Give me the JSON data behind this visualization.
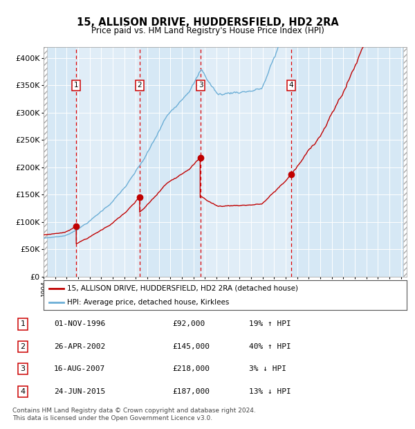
{
  "title": "15, ALLISON DRIVE, HUDDERSFIELD, HD2 2RA",
  "subtitle": "Price paid vs. HM Land Registry's House Price Index (HPI)",
  "xlim": [
    1994.0,
    2025.5
  ],
  "ylim": [
    0,
    420000
  ],
  "yticks": [
    0,
    50000,
    100000,
    150000,
    200000,
    250000,
    300000,
    350000,
    400000
  ],
  "ytick_labels": [
    "£0",
    "£50K",
    "£100K",
    "£150K",
    "£200K",
    "£250K",
    "£300K",
    "£350K",
    "£400K"
  ],
  "sale_dates": [
    1996.836,
    2002.319,
    2007.622,
    2015.479
  ],
  "sale_prices": [
    92000,
    145000,
    218000,
    187000
  ],
  "sale_labels": [
    "1",
    "2",
    "3",
    "4"
  ],
  "hpi_color": "#6BAED6",
  "price_color": "#C00000",
  "dashed_line_color": "#DD0000",
  "background_color": "#D6E8F5",
  "legend_label_price": "15, ALLISON DRIVE, HUDDERSFIELD, HD2 2RA (detached house)",
  "legend_label_hpi": "HPI: Average price, detached house, Kirklees",
  "table_entries": [
    {
      "num": "1",
      "date": "01-NOV-1996",
      "price": "£92,000",
      "change": "19% ↑ HPI"
    },
    {
      "num": "2",
      "date": "26-APR-2002",
      "price": "£145,000",
      "change": "40% ↑ HPI"
    },
    {
      "num": "3",
      "date": "16-AUG-2007",
      "price": "£218,000",
      "change": "3% ↓ HPI"
    },
    {
      "num": "4",
      "date": "24-JUN-2015",
      "price": "£187,000",
      "change": "13% ↓ HPI"
    }
  ],
  "footnote": "Contains HM Land Registry data © Crown copyright and database right 2024.\nThis data is licensed under the Open Government Licence v3.0."
}
